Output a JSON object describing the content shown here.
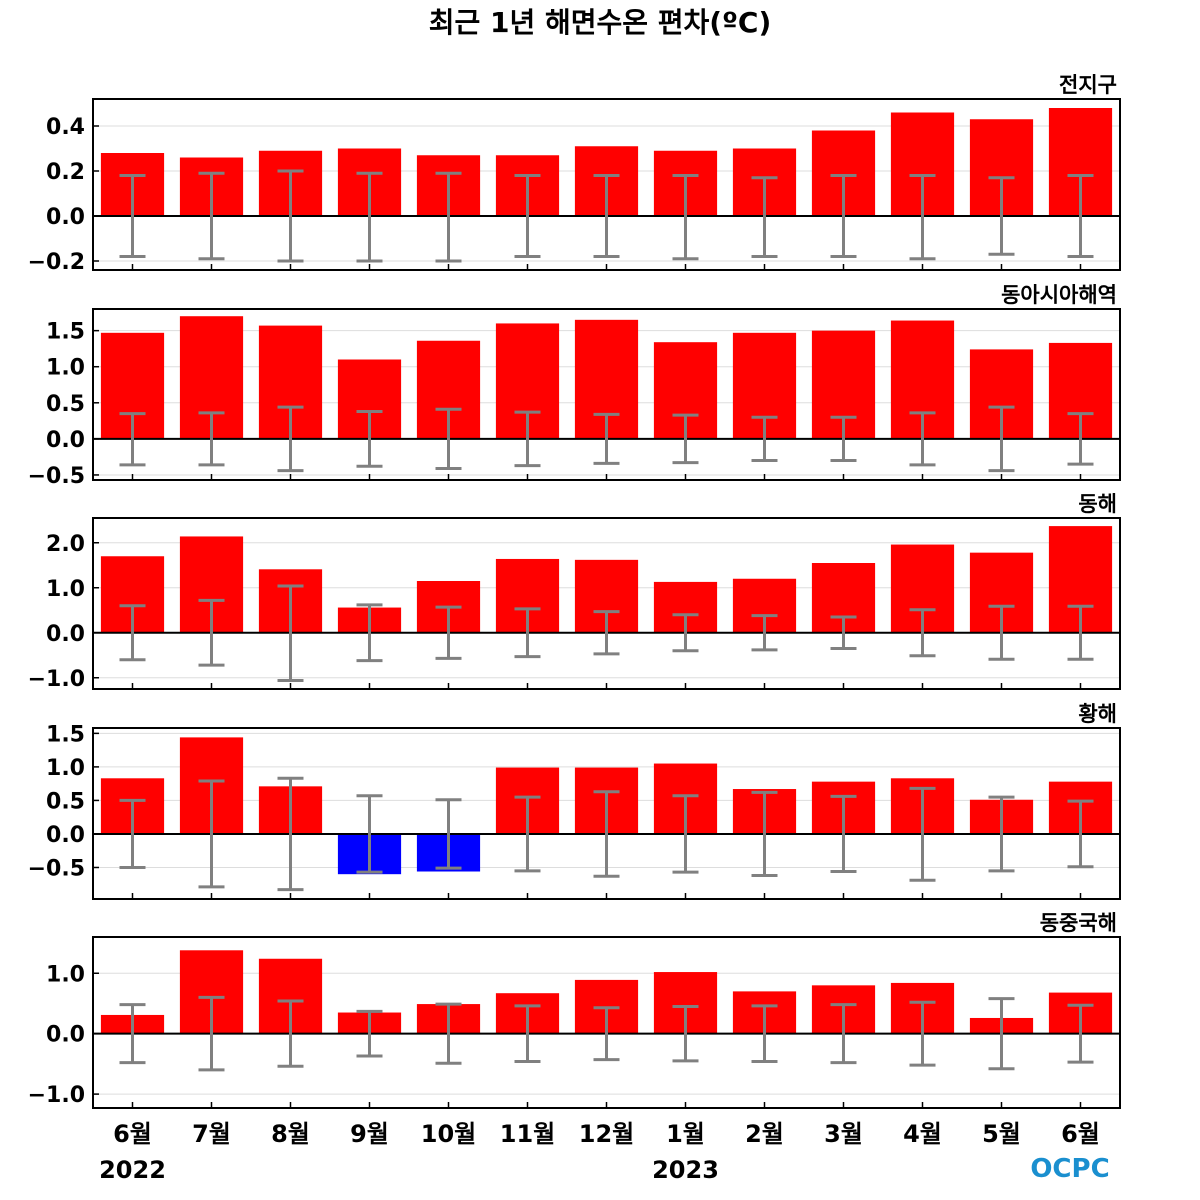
{
  "title": "최근 1년 해면수온 편차(ºC)",
  "logo_text": "OCPC",
  "months": [
    "6월",
    "7월",
    "8월",
    "9월",
    "10월",
    "11월",
    "12월",
    "1월",
    "2월",
    "3월",
    "4월",
    "5월",
    "6월"
  ],
  "years": [
    {
      "label": "2022",
      "under_month_index": 0
    },
    {
      "label": "2023",
      "under_month_index": 7
    }
  ],
  "colors": {
    "positive": "#ff0000",
    "negative": "#0000ff",
    "errorbar": "#808080",
    "grid": "#dddddd",
    "zero_line": "#000000"
  },
  "chart_data": [
    {
      "type": "bar",
      "title": "전지구",
      "categories": [
        "6월",
        "7월",
        "8월",
        "9월",
        "10월",
        "11월",
        "12월",
        "1월",
        "2월",
        "3월",
        "4월",
        "5월",
        "6월"
      ],
      "values": [
        0.28,
        0.26,
        0.29,
        0.3,
        0.27,
        0.27,
        0.31,
        0.29,
        0.3,
        0.38,
        0.46,
        0.43,
        0.48
      ],
      "error_low": [
        -0.18,
        -0.19,
        -0.2,
        -0.2,
        -0.2,
        -0.18,
        -0.18,
        -0.19,
        -0.18,
        -0.18,
        -0.19,
        -0.17,
        -0.18
      ],
      "error_high": [
        0.18,
        0.19,
        0.2,
        0.19,
        0.19,
        0.18,
        0.18,
        0.18,
        0.17,
        0.18,
        0.18,
        0.17,
        0.18
      ],
      "ylim": [
        -0.24,
        0.52
      ],
      "yticks": [
        0.4,
        0.2,
        0.0,
        -0.2
      ],
      "ytick_labels": [
        "0.4",
        "0.2",
        "0.0",
        "−0.2"
      ],
      "grid": true
    },
    {
      "type": "bar",
      "title": "동아시아해역",
      "categories": [
        "6월",
        "7월",
        "8월",
        "9월",
        "10월",
        "11월",
        "12월",
        "1월",
        "2월",
        "3월",
        "4월",
        "5월",
        "6월"
      ],
      "values": [
        1.47,
        1.7,
        1.57,
        1.1,
        1.36,
        1.6,
        1.65,
        1.34,
        1.47,
        1.5,
        1.64,
        1.24,
        1.33
      ],
      "error_low": [
        -0.36,
        -0.36,
        -0.44,
        -0.38,
        -0.41,
        -0.37,
        -0.34,
        -0.33,
        -0.3,
        -0.3,
        -0.36,
        -0.44,
        -0.35
      ],
      "error_high": [
        0.35,
        0.36,
        0.44,
        0.38,
        0.41,
        0.37,
        0.34,
        0.33,
        0.3,
        0.3,
        0.36,
        0.44,
        0.35
      ],
      "ylim": [
        -0.57,
        1.8
      ],
      "yticks": [
        1.5,
        1.0,
        0.5,
        0.0,
        -0.5
      ],
      "ytick_labels": [
        "1.5",
        "1.0",
        "0.5",
        "0.0",
        "−0.5"
      ],
      "grid": true
    },
    {
      "type": "bar",
      "title": "동해",
      "categories": [
        "6월",
        "7월",
        "8월",
        "9월",
        "10월",
        "11월",
        "12월",
        "1월",
        "2월",
        "3월",
        "4월",
        "5월",
        "6월"
      ],
      "values": [
        1.7,
        2.14,
        1.41,
        0.56,
        1.15,
        1.64,
        1.62,
        1.13,
        1.2,
        1.55,
        1.96,
        1.78,
        2.37
      ],
      "error_low": [
        -0.6,
        -0.72,
        -1.06,
        -0.62,
        -0.57,
        -0.53,
        -0.47,
        -0.4,
        -0.38,
        -0.35,
        -0.51,
        -0.59,
        -0.59
      ],
      "error_high": [
        0.6,
        0.72,
        1.04,
        0.62,
        0.57,
        0.53,
        0.47,
        0.4,
        0.38,
        0.35,
        0.51,
        0.59,
        0.59
      ],
      "ylim": [
        -1.25,
        2.55
      ],
      "yticks": [
        2.0,
        1.0,
        0.0,
        -1.0
      ],
      "ytick_labels": [
        "2.0",
        "1.0",
        "0.0",
        "−1.0"
      ],
      "grid": true
    },
    {
      "type": "bar",
      "title": "황해",
      "categories": [
        "6월",
        "7월",
        "8월",
        "9월",
        "10월",
        "11월",
        "12월",
        "1월",
        "2월",
        "3월",
        "4월",
        "5월",
        "6월"
      ],
      "values": [
        0.83,
        1.44,
        0.71,
        -0.6,
        -0.56,
        0.99,
        0.99,
        1.05,
        0.67,
        0.78,
        0.83,
        0.51,
        0.78
      ],
      "error_low": [
        -0.5,
        -0.79,
        -0.83,
        -0.57,
        -0.51,
        -0.55,
        -0.63,
        -0.57,
        -0.62,
        -0.56,
        -0.69,
        -0.55,
        -0.49
      ],
      "error_high": [
        0.5,
        0.79,
        0.83,
        0.57,
        0.51,
        0.55,
        0.63,
        0.57,
        0.62,
        0.56,
        0.68,
        0.55,
        0.49
      ],
      "ylim": [
        -0.97,
        1.58
      ],
      "yticks": [
        1.5,
        1.0,
        0.5,
        0.0,
        -0.5
      ],
      "ytick_labels": [
        "1.5",
        "1.0",
        "0.5",
        "0.0",
        "−0.5"
      ],
      "grid": true
    },
    {
      "type": "bar",
      "title": "동중국해",
      "categories": [
        "6월",
        "7월",
        "8월",
        "9월",
        "10월",
        "11월",
        "12월",
        "1월",
        "2월",
        "3월",
        "4월",
        "5월",
        "6월"
      ],
      "values": [
        0.31,
        1.38,
        1.24,
        0.35,
        0.49,
        0.67,
        0.89,
        1.02,
        0.7,
        0.8,
        0.84,
        0.26,
        0.68
      ],
      "error_low": [
        -0.48,
        -0.6,
        -0.54,
        -0.37,
        -0.49,
        -0.46,
        -0.43,
        -0.45,
        -0.46,
        -0.48,
        -0.52,
        -0.58,
        -0.47
      ],
      "error_high": [
        0.48,
        0.6,
        0.54,
        0.37,
        0.49,
        0.46,
        0.43,
        0.45,
        0.46,
        0.48,
        0.52,
        0.58,
        0.47
      ],
      "ylim": [
        -1.23,
        1.6
      ],
      "yticks": [
        1.0,
        0.0,
        -1.0
      ],
      "ytick_labels": [
        "1.0",
        "0.0",
        "−1.0"
      ],
      "grid": true
    }
  ]
}
